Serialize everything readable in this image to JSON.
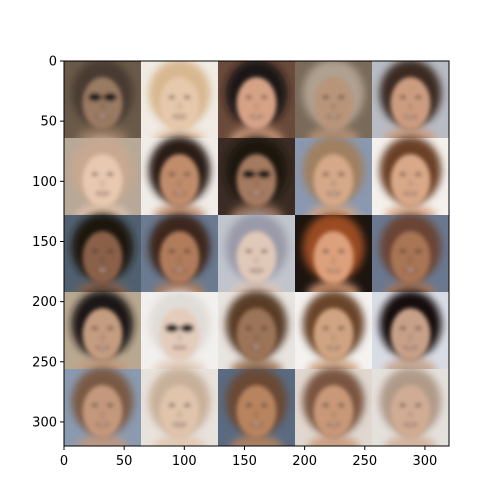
{
  "image": {
    "type": "face-sample-grid",
    "grid": {
      "rows": 5,
      "cols": 5
    },
    "background_color": "#ffffff",
    "axis_color": "#000000",
    "tiles": [
      {
        "skin": "#9a7a62",
        "hair": "#4a3a30",
        "bg": "#6a5a4a",
        "sunglasses": true
      },
      {
        "skin": "#e6c8ac",
        "hair": "#d8b890",
        "bg": "#f0ebe4",
        "sunglasses": false
      },
      {
        "skin": "#d6a286",
        "hair": "#1e1612",
        "bg": "#6a4a3a",
        "sunglasses": false
      },
      {
        "skin": "#b8947a",
        "hair": "#b0a090",
        "bg": "#7a6a5a",
        "sunglasses": false
      },
      {
        "skin": "#cc9c80",
        "hair": "#3a2a22",
        "bg": "#b8bcc4",
        "sunglasses": false
      },
      {
        "skin": "#e8c8b0",
        "hair": "#c8a890",
        "bg": "#b8a898",
        "sunglasses": false
      },
      {
        "skin": "#c08c6c",
        "hair": "#2a1c16",
        "bg": "#f0ece8",
        "sunglasses": false
      },
      {
        "skin": "#a47a60",
        "hair": "#1c1410",
        "bg": "#3a2c24",
        "sunglasses": true
      },
      {
        "skin": "#d4a888",
        "hair": "#a08060",
        "bg": "#8a98b0",
        "sunglasses": false
      },
      {
        "skin": "#d8a888",
        "hair": "#6a4028",
        "bg": "#f4f0ec",
        "sunglasses": false
      },
      {
        "skin": "#8a6048",
        "hair": "#1c140e",
        "bg": "#506070",
        "sunglasses": false
      },
      {
        "skin": "#b07c5c",
        "hair": "#3c281c",
        "bg": "#6a7a90",
        "sunglasses": false
      },
      {
        "skin": "#e0c8b8",
        "hair": "#9a9aa8",
        "bg": "#c0c4cc",
        "sunglasses": false
      },
      {
        "skin": "#dca07c",
        "hair": "#9a4c24",
        "bg": "#1c1410",
        "sunglasses": false
      },
      {
        "skin": "#a87454",
        "hair": "#6a4434",
        "bg": "#6a7890",
        "sunglasses": false
      },
      {
        "skin": "#c49c80",
        "hair": "#1a1414",
        "bg": "#b8a890",
        "sunglasses": false
      },
      {
        "skin": "#e4ccbc",
        "hair": "#e0dcd8",
        "bg": "#f2f0ee",
        "sunglasses": true
      },
      {
        "skin": "#9c7458",
        "hair": "#5a3c28",
        "bg": "#e8e4e0",
        "sunglasses": false
      },
      {
        "skin": "#d0a482",
        "hair": "#6a442c",
        "bg": "#f4f2f0",
        "sunglasses": false
      },
      {
        "skin": "#c8a088",
        "hair": "#141010",
        "bg": "#d8dce4",
        "sunglasses": false
      },
      {
        "skin": "#c4987c",
        "hair": "#7a5a44",
        "bg": "#8a9ab0",
        "sunglasses": false
      },
      {
        "skin": "#e0c4ac",
        "hair": "#c8b09a",
        "bg": "#e8e2dc",
        "sunglasses": false
      },
      {
        "skin": "#b8845e",
        "hair": "#6a4a34",
        "bg": "#5a6a80",
        "sunglasses": false
      },
      {
        "skin": "#c89878",
        "hair": "#7a5440",
        "bg": "#e0d8d0",
        "sunglasses": false
      },
      {
        "skin": "#d0ac94",
        "hair": "#b09a88",
        "bg": "#e4e0dc",
        "sunglasses": false
      }
    ]
  },
  "axes": {
    "x_ticks": [
      "0",
      "50",
      "100",
      "150",
      "200",
      "250",
      "300"
    ],
    "y_ticks": [
      "0",
      "50",
      "100",
      "150",
      "200",
      "250",
      "300"
    ]
  }
}
